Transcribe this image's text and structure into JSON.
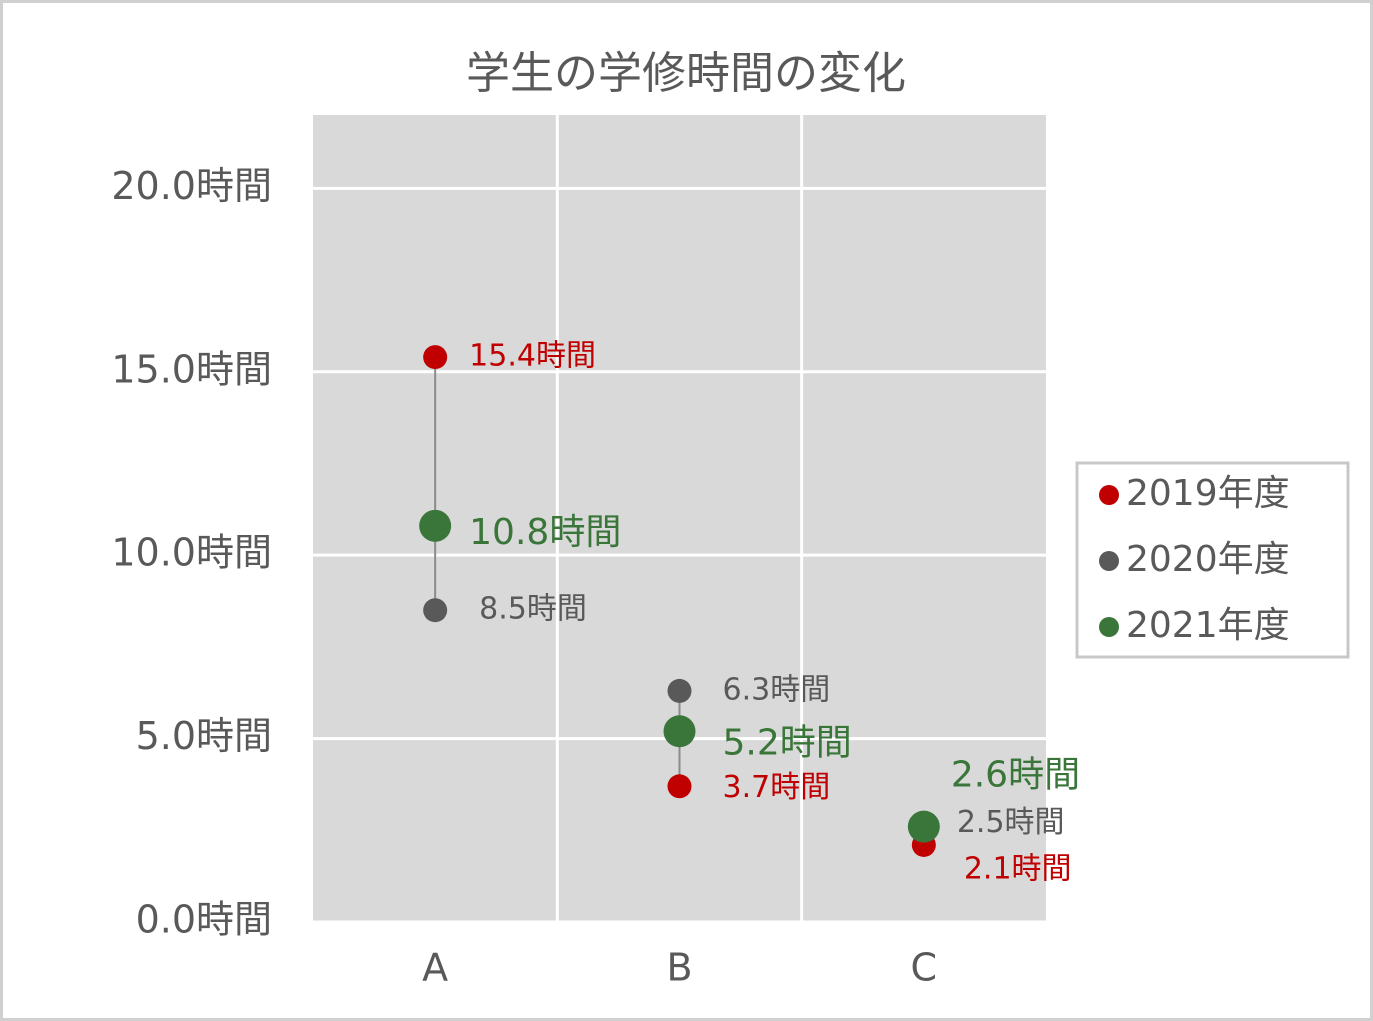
{
  "chart_data": {
    "type": "dot",
    "title": "学生の学修時間の変化",
    "categories": [
      "A",
      "B",
      "C"
    ],
    "series": [
      {
        "name": "2019年度",
        "color": "#c00000",
        "values": [
          15.4,
          3.7,
          2.1
        ],
        "value_labels": [
          "15.4時間",
          "3.7時間",
          "2.1時間"
        ]
      },
      {
        "name": "2020年度",
        "color": "#595959",
        "values": [
          8.5,
          6.3,
          2.5
        ],
        "value_labels": [
          "8.5時間",
          "6.3時間",
          "2.5時間"
        ]
      },
      {
        "name": "2021年度",
        "color": "#3a763a",
        "values": [
          10.8,
          5.2,
          2.6
        ],
        "value_labels": [
          "10.8時間",
          "5.2時間",
          "2.6時間"
        ]
      }
    ],
    "ylim": [
      0,
      22
    ],
    "yticks": [
      {
        "value": 0,
        "label": "0.0時間"
      },
      {
        "value": 5,
        "label": "5.0時間"
      },
      {
        "value": 10,
        "label": "10.0時間"
      },
      {
        "value": 15,
        "label": "15.0時間"
      },
      {
        "value": 20,
        "label": "20.0時間"
      }
    ],
    "grid": true
  }
}
